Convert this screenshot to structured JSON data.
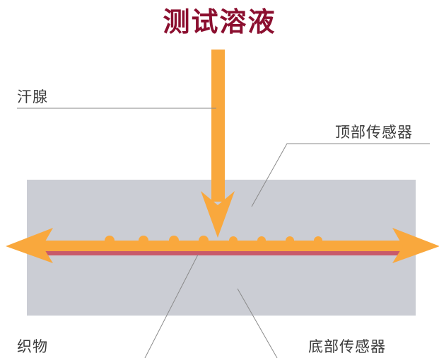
{
  "title": "测试溶液",
  "labels": {
    "sweat_gland": "汗腺",
    "top_sensor": "顶部传感器",
    "fabric": "织物",
    "bottom_sensor": "底部传感器"
  },
  "colors": {
    "title": "#8b0f2f",
    "arrow": "#f9a83d",
    "sensor_block": "#cbcdd4",
    "fabric_layer": "#c85a6a",
    "leader_line": "#8a8a8a",
    "label_text": "#3a3a3a"
  }
}
